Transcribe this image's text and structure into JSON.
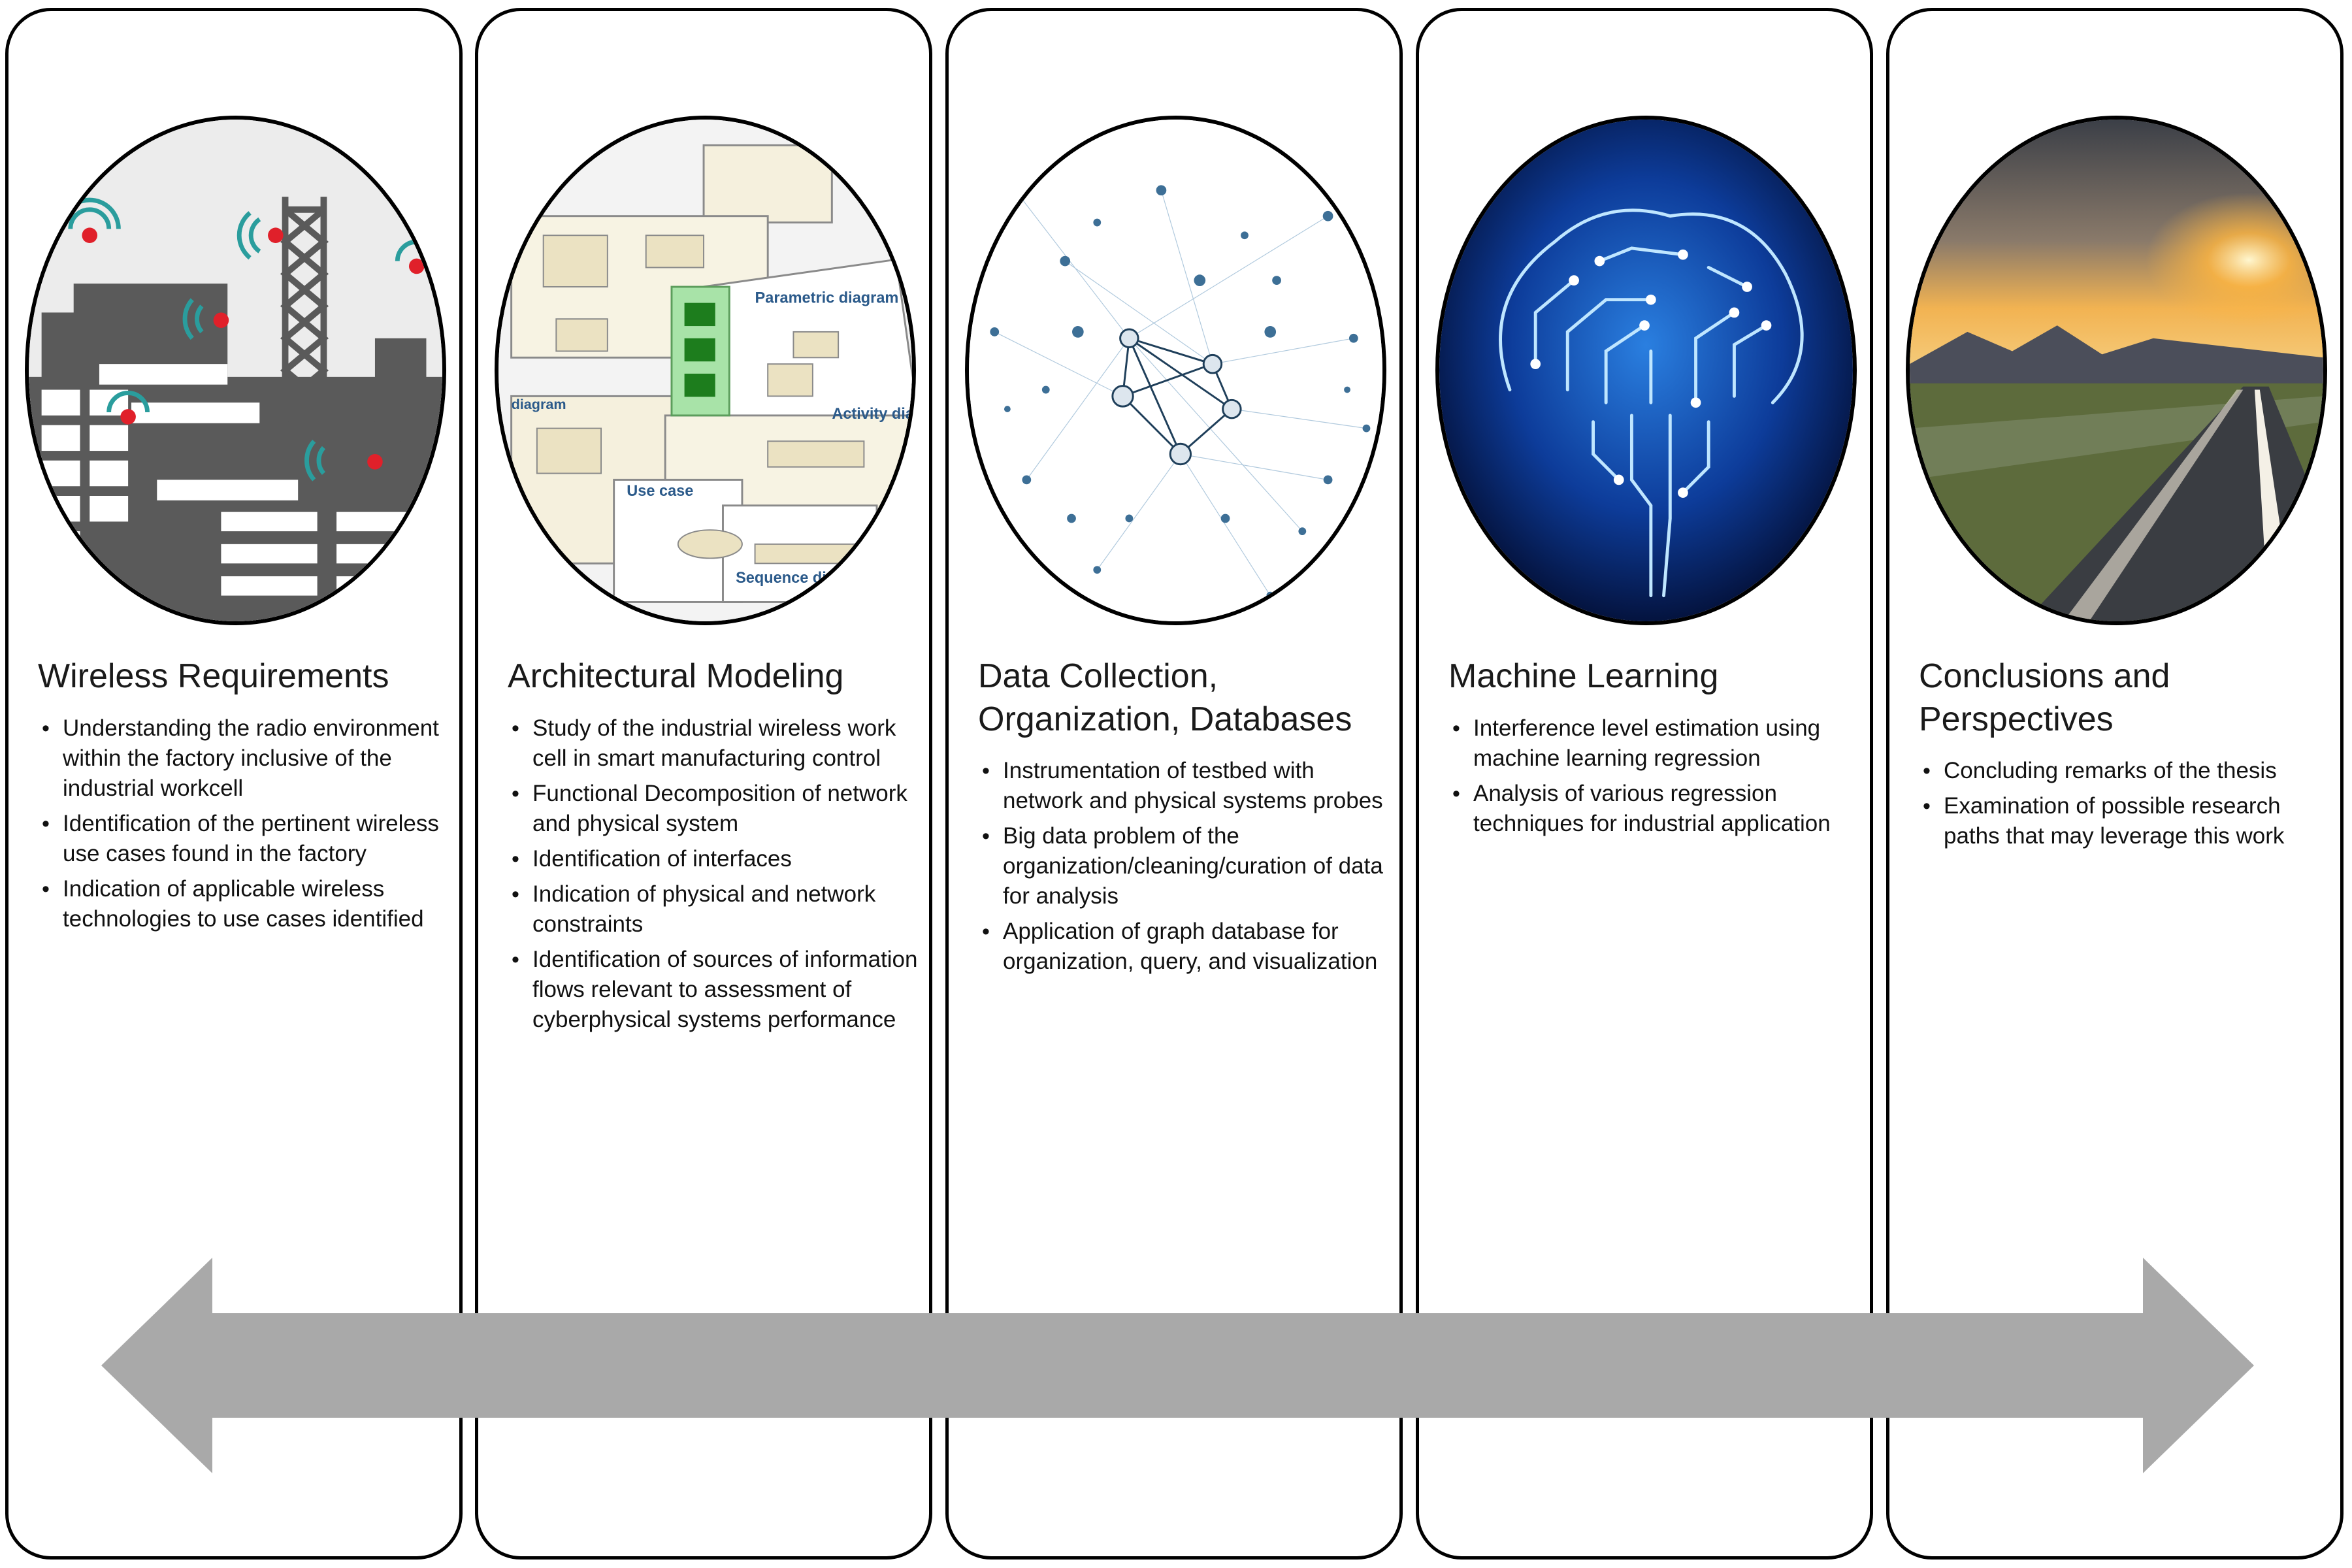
{
  "panels": [
    {
      "title": "Wireless Requirements",
      "image": "factory-wireless-icon",
      "bullets": [
        "Understanding the radio environment within the factory inclusive of the industrial workcell",
        "Identification of the pertinent wireless use cases found in the factory",
        "Indication of applicable wireless technologies to use cases identified"
      ]
    },
    {
      "title": "Architectural Modeling",
      "image": "sysml-diagrams-collage",
      "image_labels": [
        "Parametric diagram",
        "Activity diag",
        "Use case",
        "Sequence diagram",
        "diagram"
      ],
      "bullets": [
        "Study of the industrial wireless work cell in smart manufacturing control",
        "Functional Decomposition of network and physical system",
        "Identification of interfaces",
        "Indication of physical and network constraints",
        "Identification of sources of information flows relevant to assessment of cyberphysical systems  performance"
      ]
    },
    {
      "title": "Data Collection, Organization, Databases",
      "image": "network-graph",
      "bullets": [
        "Instrumentation of testbed with network and physical systems probes",
        "Big data problem of the organization/cleaning/curation of data for analysis",
        "Application of graph database for organization, query, and visualization"
      ]
    },
    {
      "title": "Machine Learning",
      "image": "circuit-brain",
      "bullets": [
        "Interference level estimation using machine learning regression",
        "Analysis of various regression techniques for industrial application"
      ]
    },
    {
      "title": "Conclusions and Perspectives",
      "image": "sunset-road",
      "bullets": [
        "Concluding remarks of the thesis",
        "Examination of possible research paths that may leverage this work"
      ]
    }
  ],
  "timeline_arrow": {
    "direction": "bidirectional",
    "color": "#a9a9a9"
  },
  "colors": {
    "border": "#000000",
    "arrow": "#a9a9a9",
    "factory": "#555555",
    "wifi": "#2a9d9d",
    "sensor": "#e0202a"
  }
}
